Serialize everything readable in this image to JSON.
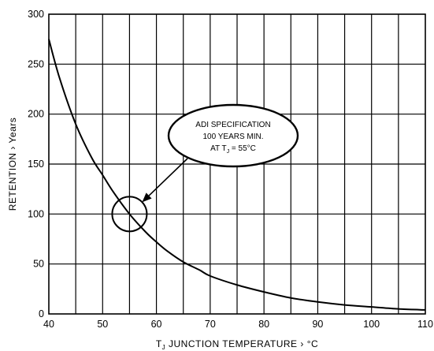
{
  "chart_data": {
    "type": "line",
    "title": "",
    "xlabel": "T  JUNCTION TEMPERATURE › °C",
    "xlabel_parts": {
      "prefix": "T",
      "sub": "J",
      "rest": " JUNCTION TEMPERATURE › °C"
    },
    "ylabel": "RETENTION › Years",
    "xlim": [
      40,
      110
    ],
    "ylim": [
      0,
      300
    ],
    "x_ticks": [
      40,
      50,
      60,
      70,
      80,
      90,
      100,
      110
    ],
    "x_ticklabels": [
      "40",
      "50",
      "60",
      "70",
      "80",
      "90",
      "100",
      "110"
    ],
    "y_ticks": [
      0,
      50,
      100,
      150,
      200,
      250,
      300
    ],
    "y_ticklabels": [
      "0",
      "50",
      "100",
      "150",
      "200",
      "250",
      "300"
    ],
    "x_gridlines": [
      45,
      50,
      55,
      60,
      65,
      70,
      75,
      80,
      85,
      90,
      95,
      100,
      105
    ],
    "y_gridlines": [
      50,
      100,
      150,
      200,
      250
    ],
    "grid": true,
    "series": [
      {
        "x": [
          40,
          42,
          45,
          48,
          50,
          52,
          55,
          58,
          60,
          62,
          65,
          68,
          70,
          75,
          80,
          85,
          90,
          95,
          100,
          105,
          110
        ],
        "y": [
          275,
          236,
          190,
          156,
          139,
          122,
          100,
          82,
          72,
          63,
          52,
          44,
          38,
          29,
          22,
          16,
          12,
          9,
          7,
          5,
          4
        ]
      }
    ],
    "annotations": [
      {
        "lines": [
          "ADI SPECIFICATION",
          "100 YEARS MIN.",
          "AT T  = 55°C"
        ],
        "line3_parts": {
          "prefix": "AT T",
          "sub": "J",
          "rest": " = 55°C"
        },
        "target": {
          "x": 55,
          "y": 100
        }
      }
    ]
  }
}
